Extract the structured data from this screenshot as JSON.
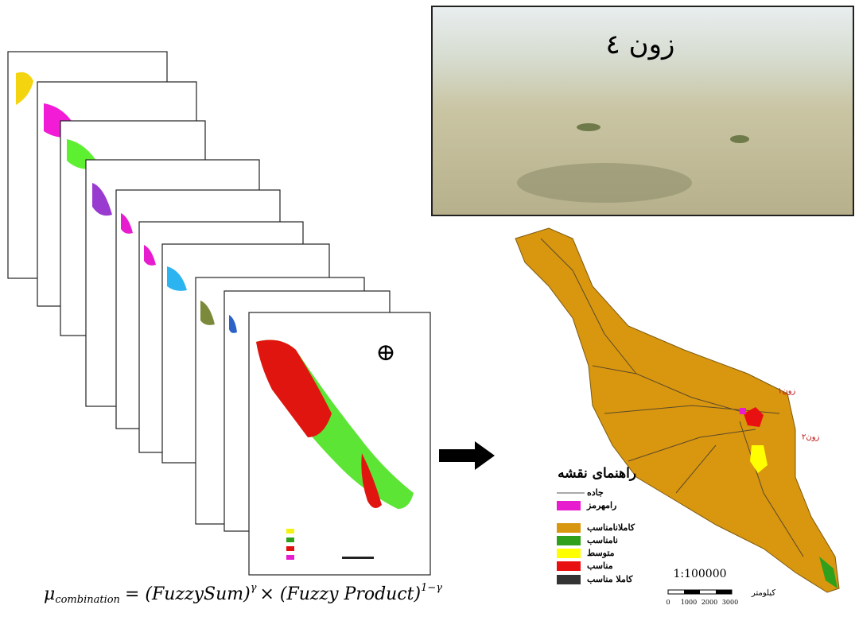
{
  "photo": {
    "caption": "زون ٤"
  },
  "formula": {
    "mu": "μ",
    "subscript": "combination",
    "part1": "= (FuzzySum)",
    "exp1": "γ",
    "part2": "× (Fuzzy Product)",
    "exp2": "1−γ"
  },
  "map": {
    "zone_labels": [
      "زون۱",
      "زون۲"
    ]
  },
  "legend": {
    "title": "راهنمای نقشه",
    "items": [
      {
        "label": "جاده",
        "color": "#555555",
        "kind": "line"
      },
      {
        "label": "رامهرمز",
        "color": "#e81ccf",
        "kind": "box"
      },
      {
        "label": "کاملانامناسب",
        "color": "#d9960f",
        "kind": "box"
      },
      {
        "label": "نامناسب",
        "color": "#2ea01c",
        "kind": "box"
      },
      {
        "label": "متوسط",
        "color": "#ffff00",
        "kind": "box"
      },
      {
        "label": "مناسب",
        "color": "#e81010",
        "kind": "box"
      },
      {
        "label": "کاملا مناسب",
        "color": "#333333",
        "kind": "box"
      }
    ]
  },
  "scale": {
    "ratio": "1:100000",
    "unit": "کیلومتر",
    "ticks": [
      "0",
      "1000",
      "2000",
      "3000"
    ]
  }
}
